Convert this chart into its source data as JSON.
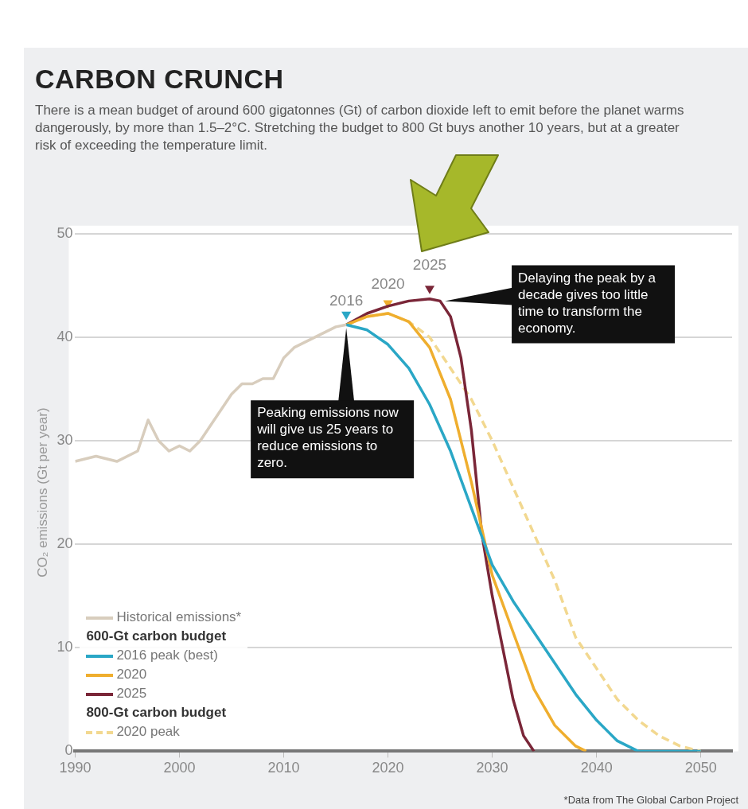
{
  "chart_data": {
    "type": "line",
    "title": "CARBON CRUNCH",
    "subtitle": "There is a mean budget of around 600 gigatonnes (Gt) of carbon dioxide left to emit before the planet warms dangerously, by more than 1.5–2°C. Stretching the budget to 800 Gt buys another 10 years, but at a greater risk of exceeding the temperature limit.",
    "ylabel": "CO₂ emissions (Gt per year)",
    "series": [
      {
        "name": "Historical emissions*",
        "color": "#d8cdbd",
        "x": [
          1990,
          1992,
          1994,
          1996,
          1997,
          1998,
          1999,
          2000,
          2001,
          2002,
          2003,
          2004,
          2005,
          2006,
          2007,
          2008,
          2009,
          2010,
          2011,
          2012,
          2013,
          2014,
          2015,
          2016
        ],
        "values": [
          28,
          28.5,
          28,
          29,
          32,
          30,
          29,
          29.5,
          29,
          30,
          31.5,
          33,
          34.5,
          35.5,
          35.5,
          36,
          36,
          38,
          39,
          39.5,
          40,
          40.5,
          41,
          41.2
        ]
      },
      {
        "name": "2016 peak (best)",
        "color": "#2aa7c6",
        "x": [
          2016,
          2018,
          2020,
          2022,
          2024,
          2026,
          2028,
          2030,
          2032,
          2034,
          2036,
          2038,
          2040,
          2042,
          2044,
          2050
        ],
        "values": [
          41.2,
          40.7,
          39.3,
          37,
          33.5,
          29,
          23.5,
          18,
          14.5,
          11.5,
          8.5,
          5.5,
          3,
          1,
          0,
          0
        ]
      },
      {
        "name": "2020",
        "color": "#efae2e",
        "x": [
          2016,
          2018,
          2020,
          2022,
          2024,
          2026,
          2028,
          2030,
          2032,
          2034,
          2036,
          2038,
          2039
        ],
        "values": [
          41.2,
          42,
          42.3,
          41.5,
          39,
          34,
          26,
          17,
          11.5,
          6,
          2.5,
          0.5,
          0
        ]
      },
      {
        "name": "2025",
        "color": "#7a2638",
        "x": [
          2016,
          2018,
          2020,
          2022,
          2024,
          2025,
          2026,
          2027,
          2028,
          2029,
          2030,
          2031,
          2032,
          2033,
          2034
        ],
        "values": [
          41.2,
          42.3,
          43,
          43.5,
          43.7,
          43.5,
          42,
          38,
          31,
          21,
          15,
          10,
          5,
          1.5,
          0
        ]
      },
      {
        "name": "2020 peak",
        "color": "#f2d890",
        "line_style": "dashed",
        "x": [
          2016,
          2018,
          2020,
          2022,
          2024,
          2026,
          2028,
          2030,
          2032,
          2034,
          2036,
          2038,
          2040,
          2042,
          2044,
          2046,
          2048,
          2050
        ],
        "values": [
          41.2,
          42,
          42.3,
          41.5,
          40,
          37,
          34,
          30,
          25.5,
          21,
          16.5,
          11,
          8,
          5,
          3,
          1.5,
          0.5,
          0
        ]
      },
      {
        "type": "scatter",
        "marker": "triangle",
        "x": [
          2016,
          2020,
          2024
        ],
        "values": [
          42.2,
          43.3,
          44.7
        ],
        "colors": [
          "#2aa7c6",
          "#efae2e",
          "#7a2638"
        ]
      }
    ],
    "xlim": [
      1990,
      2053
    ],
    "xticks": [
      1990,
      2000,
      2010,
      2020,
      2030,
      2040,
      2050
    ],
    "ylim": [
      0,
      50
    ],
    "yticks": [
      0,
      10,
      20,
      30,
      40,
      50
    ],
    "grid": "y",
    "legend": "bottom left",
    "marker": "none",
    "line_style": "solid",
    "annotations": [
      {
        "text": "2016",
        "x": 2016,
        "y": 41.2
      },
      {
        "text": "2020",
        "x": 2020,
        "y": 42.3
      },
      {
        "text": "2025",
        "x": 2024,
        "y": 43.7
      },
      {
        "text": "Peaking emissions now will give us 25 years to reduce emissions to zero.",
        "x": 2016,
        "y": 41.2
      },
      {
        "text": "Delaying the peak by a decade gives too little time to transform the economy.",
        "x": 2025,
        "y": 43.5
      },
      "600-Gt carbon budget",
      "800-Gt carbon budget",
      "*Data from The Global Carbon Project"
    ]
  }
}
